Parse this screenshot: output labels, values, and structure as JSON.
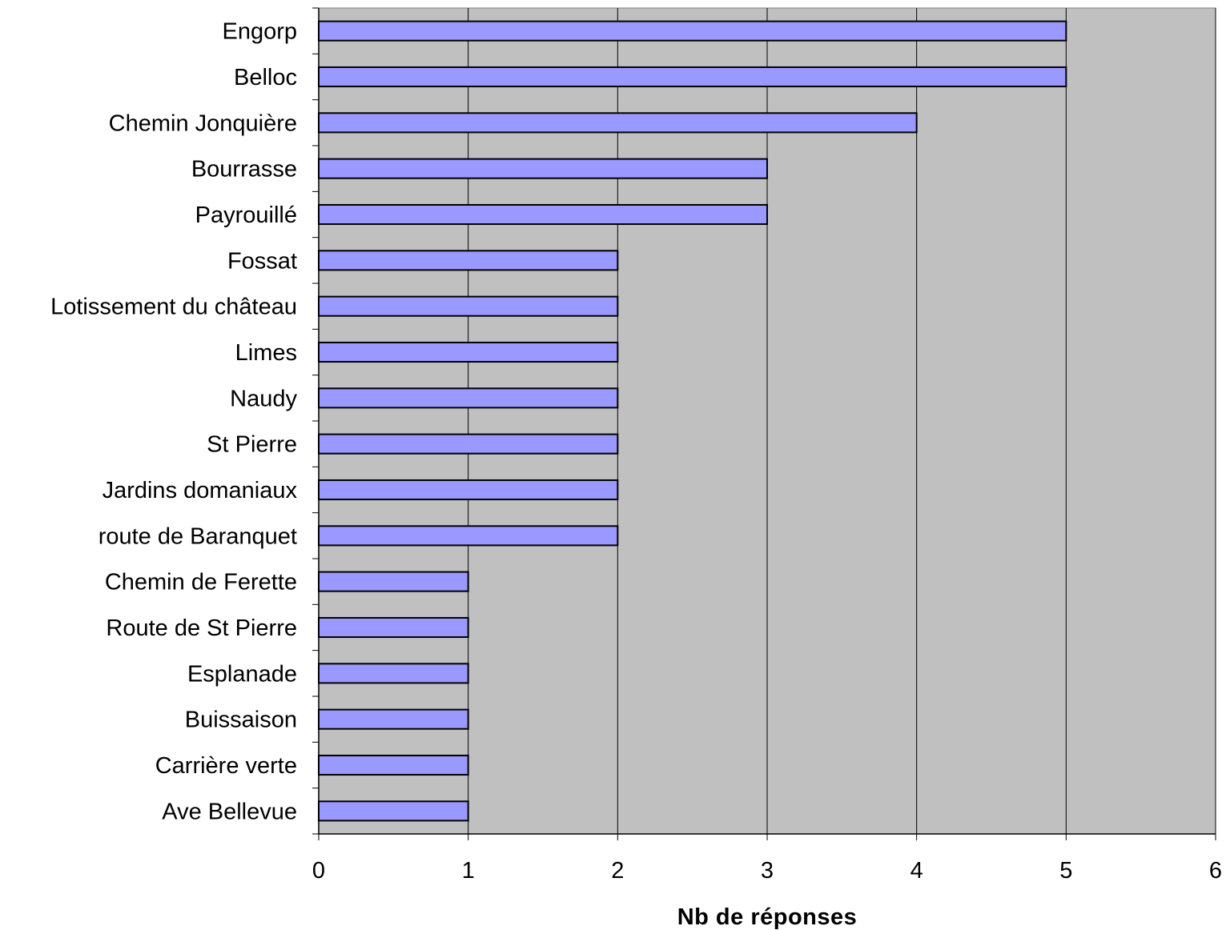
{
  "chart_data": {
    "type": "bar",
    "orientation": "horizontal",
    "categories": [
      "Engorp",
      "Belloc",
      "Chemin Jonquière",
      "Bourrasse",
      "Payrouillé",
      "Fossat",
      "Lotissement du château",
      "Limes",
      "Naudy",
      "St Pierre",
      "Jardins domaniaux",
      "route de Baranquet",
      "Chemin de Ferette",
      "Route de St Pierre",
      "Esplanade",
      "Buissaison",
      "Carrière verte",
      "Ave Bellevue"
    ],
    "values": [
      5,
      5,
      4,
      3,
      3,
      2,
      2,
      2,
      2,
      2,
      2,
      2,
      1,
      1,
      1,
      1,
      1,
      1
    ],
    "title": "",
    "xlabel": "Nb de réponses",
    "ylabel": "",
    "xlim": [
      0,
      6
    ],
    "xticks": [
      "0",
      "1",
      "2",
      "3",
      "4",
      "5",
      "6"
    ],
    "grid": "vertical",
    "legend": "none",
    "colors": {
      "bar": "#9999ff",
      "bar_border": "#000000",
      "plot_background": "#c0c0c0",
      "gridline": "#000000"
    }
  }
}
